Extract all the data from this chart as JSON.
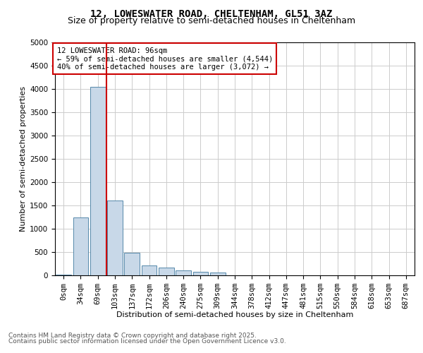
{
  "title_line1": "12, LOWESWATER ROAD, CHELTENHAM, GL51 3AZ",
  "title_line2": "Size of property relative to semi-detached houses in Cheltenham",
  "xlabel": "Distribution of semi-detached houses by size in Cheltenham",
  "ylabel": "Number of semi-detached properties",
  "annotation_title": "12 LOWESWATER ROAD: 96sqm",
  "annotation_line1": "← 59% of semi-detached houses are smaller (4,544)",
  "annotation_line2": "40% of semi-detached houses are larger (3,072) →",
  "footer_line1": "Contains HM Land Registry data © Crown copyright and database right 2025.",
  "footer_line2": "Contains public sector information licensed under the Open Government Licence v3.0.",
  "bar_labels": [
    "0sqm",
    "34sqm",
    "69sqm",
    "103sqm",
    "137sqm",
    "172sqm",
    "206sqm",
    "240sqm",
    "275sqm",
    "309sqm",
    "344sqm",
    "378sqm",
    "412sqm",
    "447sqm",
    "481sqm",
    "515sqm",
    "550sqm",
    "584sqm",
    "618sqm",
    "653sqm",
    "687sqm"
  ],
  "bar_values": [
    10,
    1250,
    4050,
    1600,
    480,
    210,
    170,
    110,
    80,
    60,
    0,
    0,
    0,
    0,
    0,
    0,
    0,
    0,
    0,
    0,
    0
  ],
  "bar_color": "#c8d8e8",
  "bar_edge_color": "#5588aa",
  "property_line_x": 2.5,
  "property_line_color": "#cc0000",
  "ylim": [
    0,
    5000
  ],
  "yticks": [
    0,
    500,
    1000,
    1500,
    2000,
    2500,
    3000,
    3500,
    4000,
    4500,
    5000
  ],
  "background_color": "#ffffff",
  "grid_color": "#cccccc",
  "annotation_box_color": "#cc0000",
  "title_fontsize": 10,
  "subtitle_fontsize": 9,
  "axis_label_fontsize": 8,
  "tick_fontsize": 7.5,
  "annotation_fontsize": 7.5,
  "footer_fontsize": 6.5
}
